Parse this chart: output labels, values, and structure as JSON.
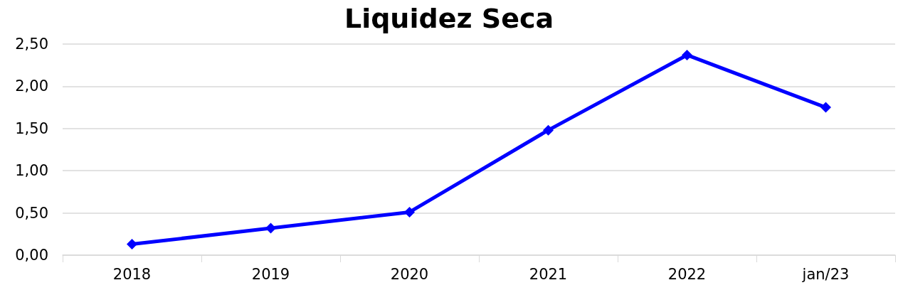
{
  "chart_data": {
    "type": "line",
    "title": "Liquidez Seca",
    "categories": [
      "2018",
      "2019",
      "2020",
      "2021",
      "2022",
      "jan/23"
    ],
    "series": [
      {
        "color": "#0000ff",
        "values": [
          0.13,
          0.32,
          0.51,
          1.48,
          2.37,
          1.75
        ]
      }
    ],
    "ylim": [
      0,
      2.5
    ],
    "yticks": [
      {
        "value": 0,
        "label": "0,00"
      },
      {
        "value": 0.5,
        "label": "0,50"
      },
      {
        "value": 1,
        "label": "1,00"
      },
      {
        "value": 1.5,
        "label": "1,50"
      },
      {
        "value": 2,
        "label": "2,00"
      },
      {
        "value": 2.5,
        "label": "2,50"
      }
    ],
    "grid": "y",
    "marker": "diamond",
    "line_style": "solid"
  }
}
